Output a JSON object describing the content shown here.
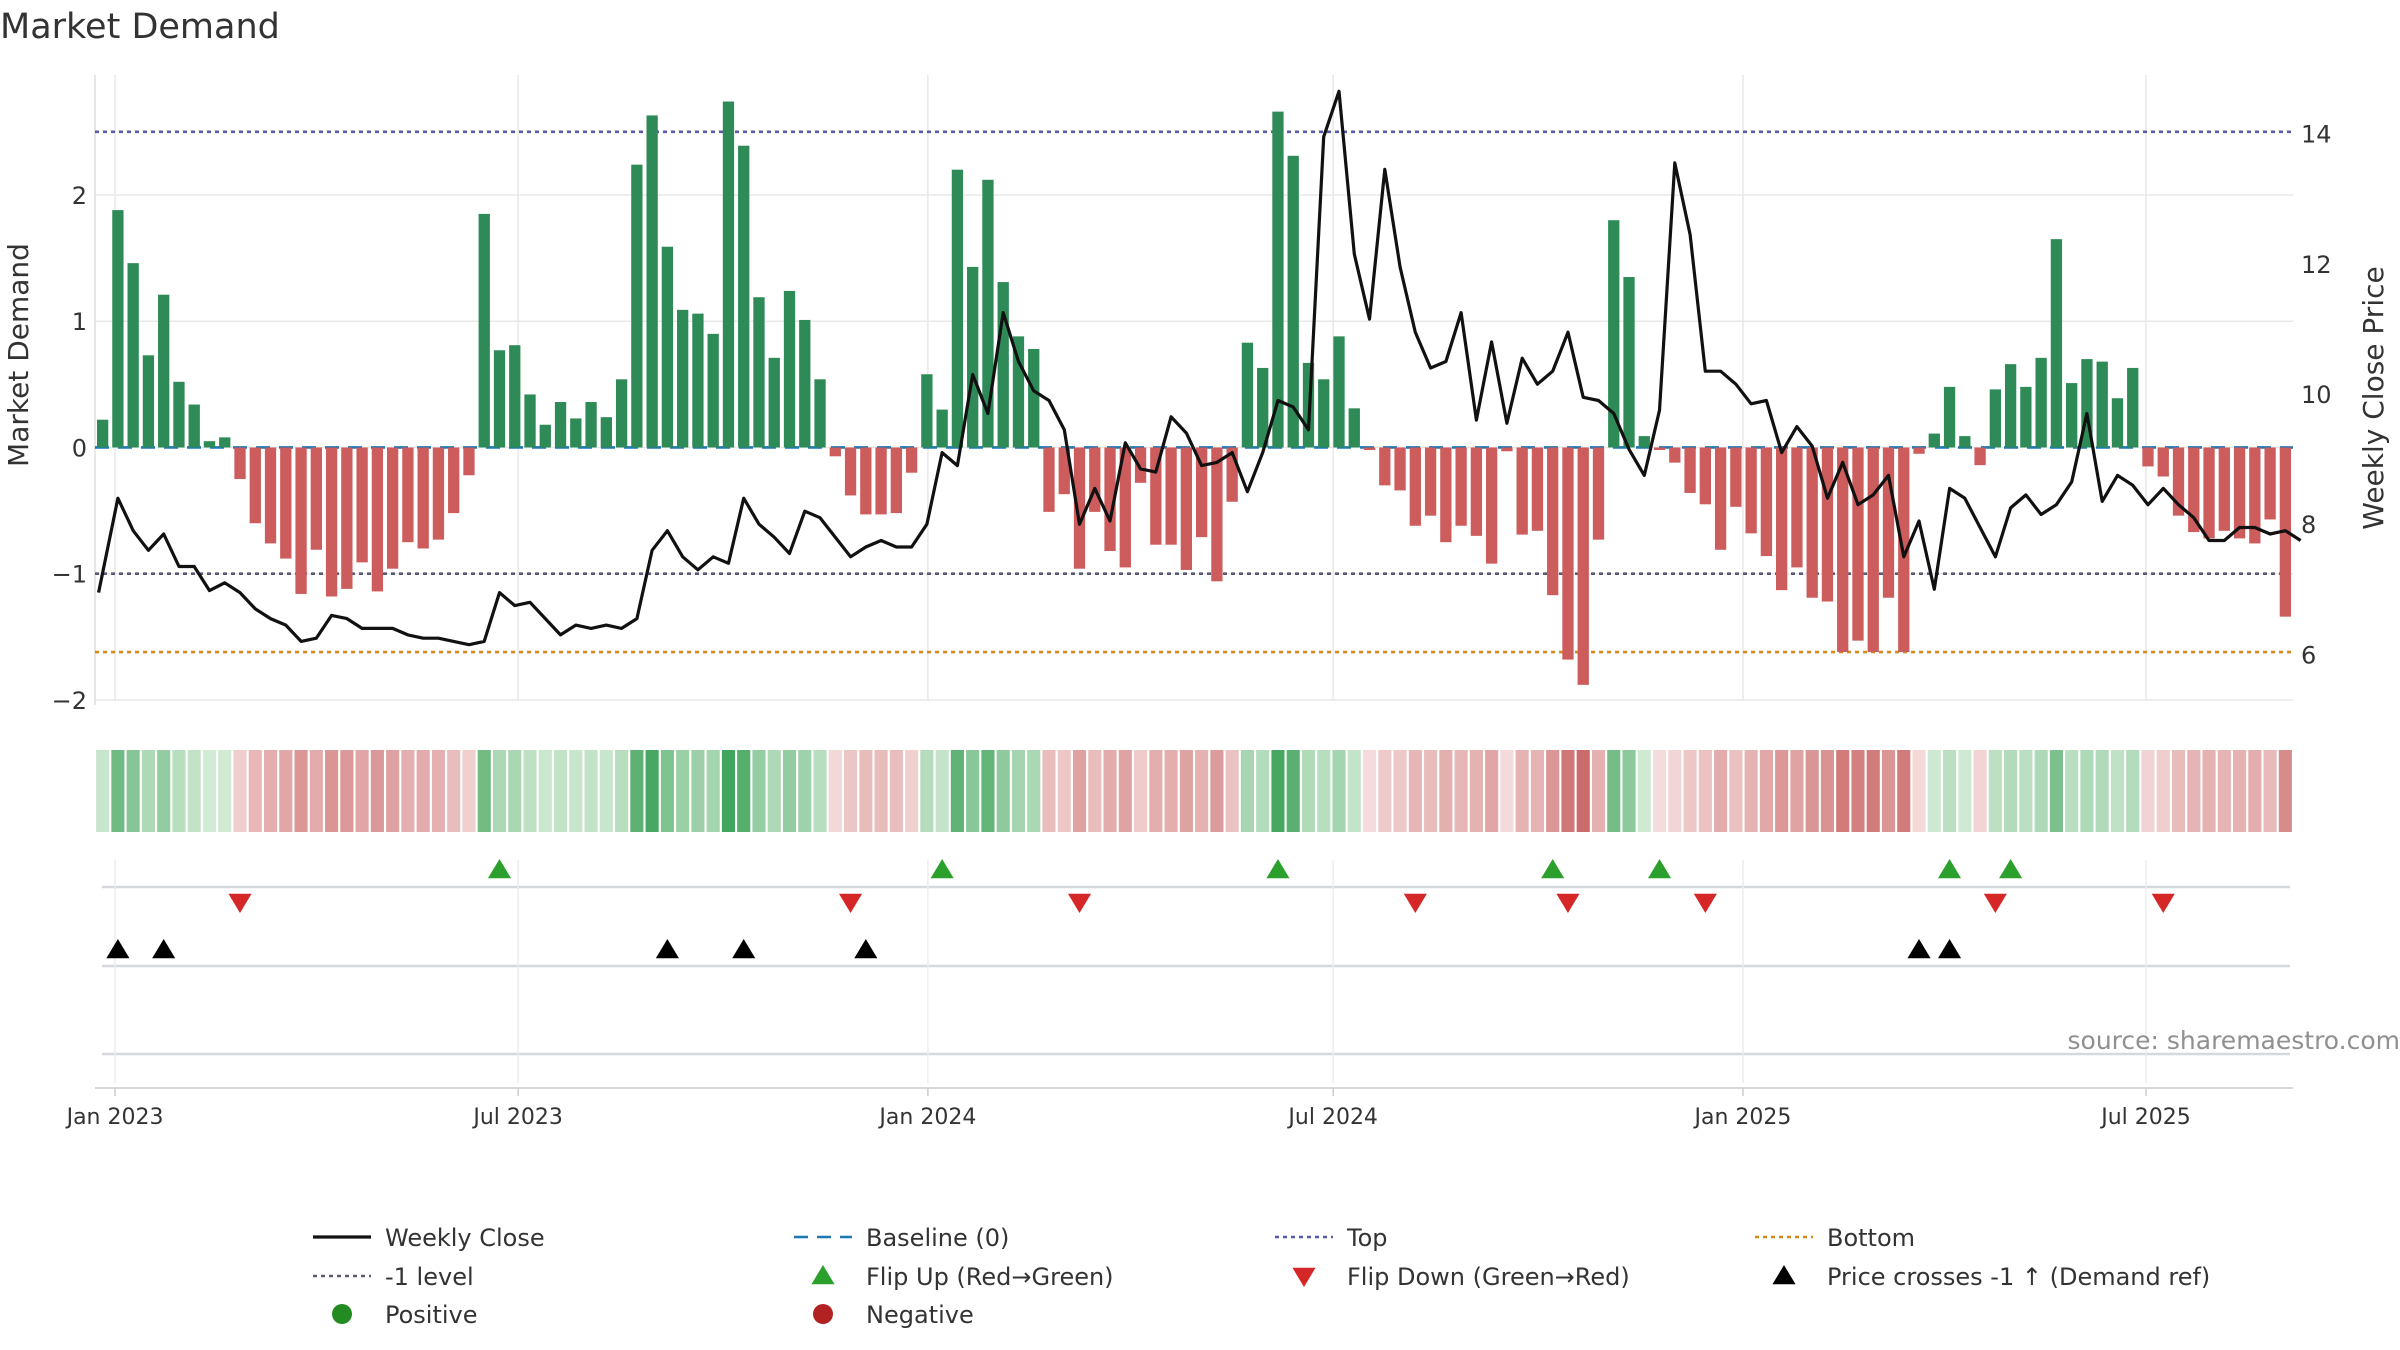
{
  "chart_data": {
    "type": "bar+line",
    "title": "Market Demand",
    "source_note": "source: sharemaestro.com",
    "left_axis": {
      "label": "Market Demand",
      "range": [
        -2.0,
        2.95
      ],
      "ticks": [
        -2,
        -1,
        0,
        1,
        2
      ],
      "tick_labels": [
        "−2",
        "−1",
        "0",
        "1",
        "2"
      ]
    },
    "right_axis": {
      "label": "Weekly Close Price",
      "range": [
        5.3,
        14.9
      ],
      "ticks": [
        6,
        8,
        10,
        12,
        14
      ],
      "tick_labels": [
        "6",
        "8",
        "10",
        "12",
        "14"
      ]
    },
    "x_axis": {
      "start": "2022-12-23",
      "end": "2025-09-05",
      "ticks": [
        {
          "label": "Jan 2023",
          "date": "2023-01-01"
        },
        {
          "label": "Jul 2023",
          "date": "2023-07-01"
        },
        {
          "label": "Jan 2024",
          "date": "2024-01-01"
        },
        {
          "label": "Jul 2024",
          "date": "2024-07-01"
        },
        {
          "label": "Jan 2025",
          "date": "2025-01-01"
        },
        {
          "label": "Jul 2025",
          "date": "2025-07-01"
        }
      ]
    },
    "reference_lines": {
      "top": 2.5,
      "minus_one": -1.0,
      "bottom": -1.62,
      "baseline": 0
    },
    "demand": [
      0.22,
      1.88,
      1.46,
      0.73,
      1.21,
      0.52,
      0.34,
      0.05,
      0.08,
      -0.25,
      -0.6,
      -0.76,
      -0.88,
      -1.16,
      -0.81,
      -1.18,
      -1.12,
      -0.91,
      -1.14,
      -0.96,
      -0.75,
      -0.8,
      -0.73,
      -0.52,
      -0.22,
      1.85,
      0.77,
      0.81,
      0.42,
      0.18,
      0.36,
      0.23,
      0.36,
      0.24,
      0.54,
      2.24,
      2.63,
      1.59,
      1.09,
      1.06,
      0.9,
      2.74,
      2.39,
      1.19,
      0.71,
      1.24,
      1.01,
      0.54,
      -0.07,
      -0.38,
      -0.53,
      -0.53,
      -0.52,
      -0.2,
      0.58,
      0.3,
      2.2,
      1.43,
      2.12,
      1.31,
      0.88,
      0.78,
      -0.51,
      -0.37,
      -0.96,
      -0.51,
      -0.82,
      -0.95,
      -0.28,
      -0.77,
      -0.77,
      -0.97,
      -0.71,
      -1.06,
      -0.43,
      0.83,
      0.63,
      2.66,
      2.31,
      0.67,
      0.54,
      0.88,
      0.31,
      -0.02,
      -0.3,
      -0.34,
      -0.62,
      -0.54,
      -0.75,
      -0.62,
      -0.7,
      -0.92,
      -0.03,
      -0.69,
      -0.66,
      -1.17,
      -1.68,
      -1.88,
      -0.73,
      1.8,
      1.35,
      0.09,
      -0.02,
      -0.12,
      -0.36,
      -0.45,
      -0.81,
      -0.47,
      -0.68,
      -0.86,
      -1.13,
      -0.95,
      -1.19,
      -1.22,
      -1.62,
      -1.53,
      -1.62,
      -1.19,
      -1.62,
      -0.05,
      0.11,
      0.48,
      0.09,
      -0.14,
      0.46,
      0.66,
      0.48,
      0.71,
      1.65,
      0.51,
      0.7,
      0.68,
      0.39,
      0.63,
      -0.15,
      -0.23,
      -0.54,
      -0.67,
      -0.72,
      -0.66,
      -0.72,
      -0.76,
      -0.57,
      -1.34
    ],
    "weekly_close": [
      6.95,
      8.4,
      7.9,
      7.6,
      7.85,
      7.35,
      7.35,
      6.98,
      7.1,
      6.95,
      6.7,
      6.55,
      6.45,
      6.2,
      6.25,
      6.6,
      6.55,
      6.4,
      6.4,
      6.4,
      6.3,
      6.25,
      6.25,
      6.2,
      6.15,
      6.2,
      6.95,
      6.75,
      6.8,
      6.55,
      6.3,
      6.45,
      6.4,
      6.45,
      6.4,
      6.55,
      7.6,
      7.9,
      7.5,
      7.3,
      7.5,
      7.4,
      8.4,
      8.0,
      7.8,
      7.55,
      8.2,
      8.1,
      7.8,
      7.5,
      7.65,
      7.75,
      7.65,
      7.65,
      8.0,
      9.1,
      8.9,
      10.3,
      9.7,
      11.25,
      10.5,
      10.05,
      9.9,
      9.45,
      8.0,
      8.55,
      8.05,
      9.25,
      8.85,
      8.8,
      9.65,
      9.4,
      8.9,
      8.95,
      9.1,
      8.5,
      9.1,
      9.9,
      9.8,
      9.45,
      13.95,
      14.65,
      12.15,
      11.15,
      13.45,
      11.95,
      10.95,
      10.4,
      10.5,
      11.25,
      9.6,
      10.8,
      9.55,
      10.55,
      10.15,
      10.35,
      10.95,
      9.95,
      9.9,
      9.7,
      9.15,
      8.75,
      9.75,
      13.55,
      12.45,
      10.35,
      10.35,
      10.15,
      9.85,
      9.9,
      9.1,
      9.5,
      9.2,
      8.4,
      8.95,
      8.3,
      8.45,
      8.75,
      7.5,
      8.05,
      7.0,
      8.55,
      8.4,
      7.95,
      7.5,
      8.25,
      8.45,
      8.15,
      8.3,
      8.65,
      9.7,
      8.35,
      8.75,
      8.6,
      8.3,
      8.55,
      8.3,
      8.1,
      7.75,
      7.75,
      7.95,
      7.95,
      7.85,
      7.9,
      7.75
    ],
    "colour_strip_range": [
      -2.0,
      2.8
    ],
    "flip_up_weeks": [
      26,
      55,
      77,
      95,
      102,
      121,
      125
    ],
    "flip_down_weeks": [
      9,
      49,
      64,
      86,
      96,
      105,
      124,
      135
    ],
    "price_cross_weeks": [
      1,
      4,
      37,
      42,
      50,
      119,
      121
    ],
    "legend": {
      "position": "bottom",
      "items": [
        {
          "key": "close",
          "label": "Weekly Close",
          "symbol": "line",
          "color": "#111111"
        },
        {
          "key": "baseline",
          "label": "Baseline (0)",
          "symbol": "dash",
          "color": "#1f77b4"
        },
        {
          "key": "top",
          "label": "Top",
          "symbol": "dot",
          "color": "#5a5aa8"
        },
        {
          "key": "bottom",
          "label": "Bottom",
          "symbol": "dot",
          "color": "#d68a1a"
        },
        {
          "key": "minus1",
          "label": "-1 level",
          "symbol": "dot",
          "color": "#5a5a74"
        },
        {
          "key": "flipup",
          "label": "Flip Up (Red→Green)",
          "symbol": "triangle-up",
          "color": "#2ca02c"
        },
        {
          "key": "flipdown",
          "label": "Flip Down (Green→Red)",
          "symbol": "triangle-down",
          "color": "#d62728"
        },
        {
          "key": "cross",
          "label": "Price crosses -1 ↑ (Demand ref)",
          "symbol": "triangle-up",
          "color": "#000000"
        },
        {
          "key": "positive",
          "label": "Positive",
          "symbol": "circle",
          "color": "#228b22"
        },
        {
          "key": "negative",
          "label": "Negative",
          "symbol": "circle",
          "color": "#b22222"
        }
      ]
    }
  },
  "colors": {
    "bar_positive": "#2e8b57",
    "bar_negative": "#cd5c5c",
    "close_line": "#111111",
    "grid": "#e8e8e8",
    "track": "#d5d8dc"
  }
}
